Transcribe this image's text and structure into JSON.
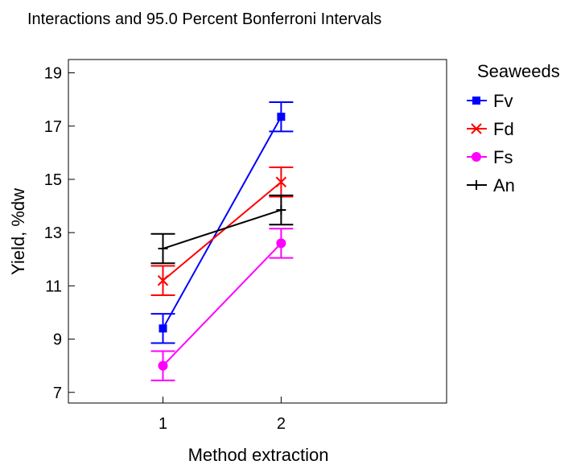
{
  "chart_data": {
    "type": "line",
    "title": "Interactions and 95.0 Percent Bonferroni Intervals",
    "xlabel": "Method extraction",
    "ylabel": "Yield, %dw",
    "categories": [
      "1",
      "2"
    ],
    "x_tick_labels": [
      "1",
      "2"
    ],
    "xlim": [
      0.2,
      3.4
    ],
    "ylim": [
      6.6,
      19.5
    ],
    "y_ticks": [
      7,
      9,
      11,
      13,
      15,
      17,
      19
    ],
    "y_tick_labels": [
      "7",
      "9",
      "11",
      "13",
      "15",
      "17",
      "19"
    ],
    "grid": false,
    "legend": {
      "title": "Seaweeds",
      "placement": "right"
    },
    "series": [
      {
        "name": "Fv",
        "color": "#0000ff",
        "marker": "square",
        "values": [
          9.4,
          17.35
        ],
        "ci_low": [
          8.85,
          16.8
        ],
        "ci_high": [
          9.95,
          17.9
        ]
      },
      {
        "name": "Fd",
        "color": "#ff0000",
        "marker": "x",
        "values": [
          11.2,
          14.9
        ],
        "ci_low": [
          10.65,
          14.35
        ],
        "ci_high": [
          11.75,
          15.45
        ]
      },
      {
        "name": "Fs",
        "color": "#ff00ff",
        "marker": "circle",
        "values": [
          8.0,
          12.6
        ],
        "ci_low": [
          7.45,
          12.05
        ],
        "ci_high": [
          8.55,
          13.15
        ]
      },
      {
        "name": "An",
        "color": "#000000",
        "marker": "plus",
        "values": [
          12.4,
          13.85
        ],
        "ci_low": [
          11.85,
          13.3
        ],
        "ci_high": [
          12.95,
          14.4
        ]
      }
    ]
  }
}
